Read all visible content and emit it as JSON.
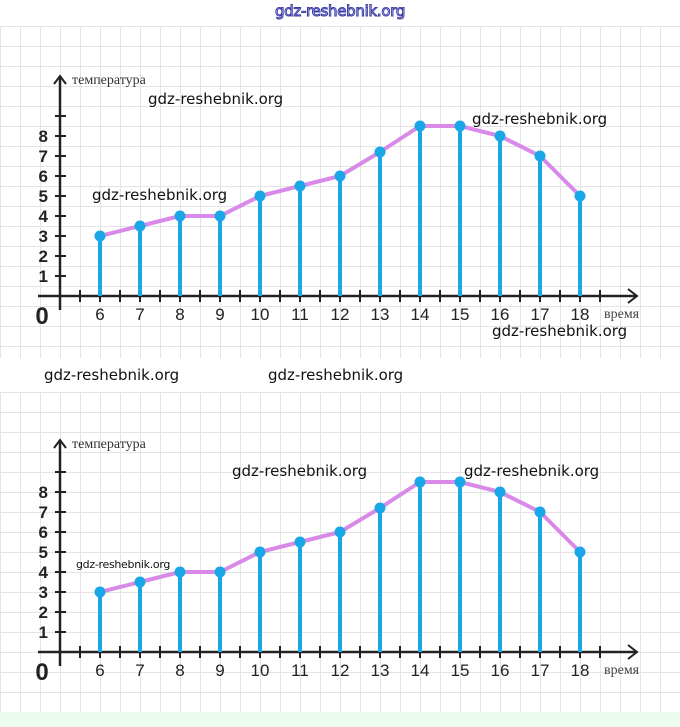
{
  "header": {
    "site_title": "gdz-reshebnik.org"
  },
  "watermarks": {
    "panel1": [
      "gdz-reshebnik.org",
      "gdz-reshebnik.org",
      "gdz-reshebnik.org",
      "gdz-reshebnik.org"
    ],
    "band": [
      "gdz-reshebnik.org",
      "gdz-reshebnik.org"
    ],
    "panel2": [
      "gdz-reshebnik.org",
      "gdz-reshebnik.org",
      "gdz-reshebnik.org"
    ]
  },
  "colors": {
    "line": "#d98ae8",
    "stem": "#1aa7e8",
    "axis": "#222222",
    "grid": "#e4e4e4"
  },
  "chart_data": [
    {
      "type": "line",
      "title": "",
      "xlabel": "время",
      "ylabel": "температура",
      "origin_label": "0",
      "x": [
        6,
        7,
        8,
        9,
        10,
        11,
        12,
        13,
        14,
        15,
        16,
        17,
        18
      ],
      "values": [
        3,
        3.5,
        4,
        4,
        5,
        5.5,
        6,
        7.2,
        8.5,
        8.5,
        8,
        7,
        5
      ],
      "x_ticks": [
        "6",
        "7",
        "8",
        "9",
        "10",
        "11",
        "12",
        "13",
        "14",
        "15",
        "16",
        "17",
        "18"
      ],
      "y_ticks": [
        "1",
        "2",
        "3",
        "4",
        "5",
        "6",
        "7",
        "8"
      ],
      "xlim": [
        5,
        19
      ],
      "ylim": [
        0,
        9
      ],
      "stems": true,
      "grid": true
    },
    {
      "type": "line",
      "title": "",
      "xlabel": "время",
      "ylabel": "температура",
      "origin_label": "0",
      "x": [
        6,
        7,
        8,
        9,
        10,
        11,
        12,
        13,
        14,
        15,
        16,
        17,
        18
      ],
      "values": [
        3,
        3.5,
        4,
        4,
        5,
        5.5,
        6,
        7.2,
        8.5,
        8.5,
        8,
        7,
        5
      ],
      "x_ticks": [
        "6",
        "7",
        "8",
        "9",
        "10",
        "11",
        "12",
        "13",
        "14",
        "15",
        "16",
        "17",
        "18"
      ],
      "y_ticks": [
        "1",
        "2",
        "3",
        "4",
        "5",
        "6",
        "7",
        "8"
      ],
      "xlim": [
        5,
        19
      ],
      "ylim": [
        0,
        9
      ],
      "stems": true,
      "grid": true
    }
  ]
}
